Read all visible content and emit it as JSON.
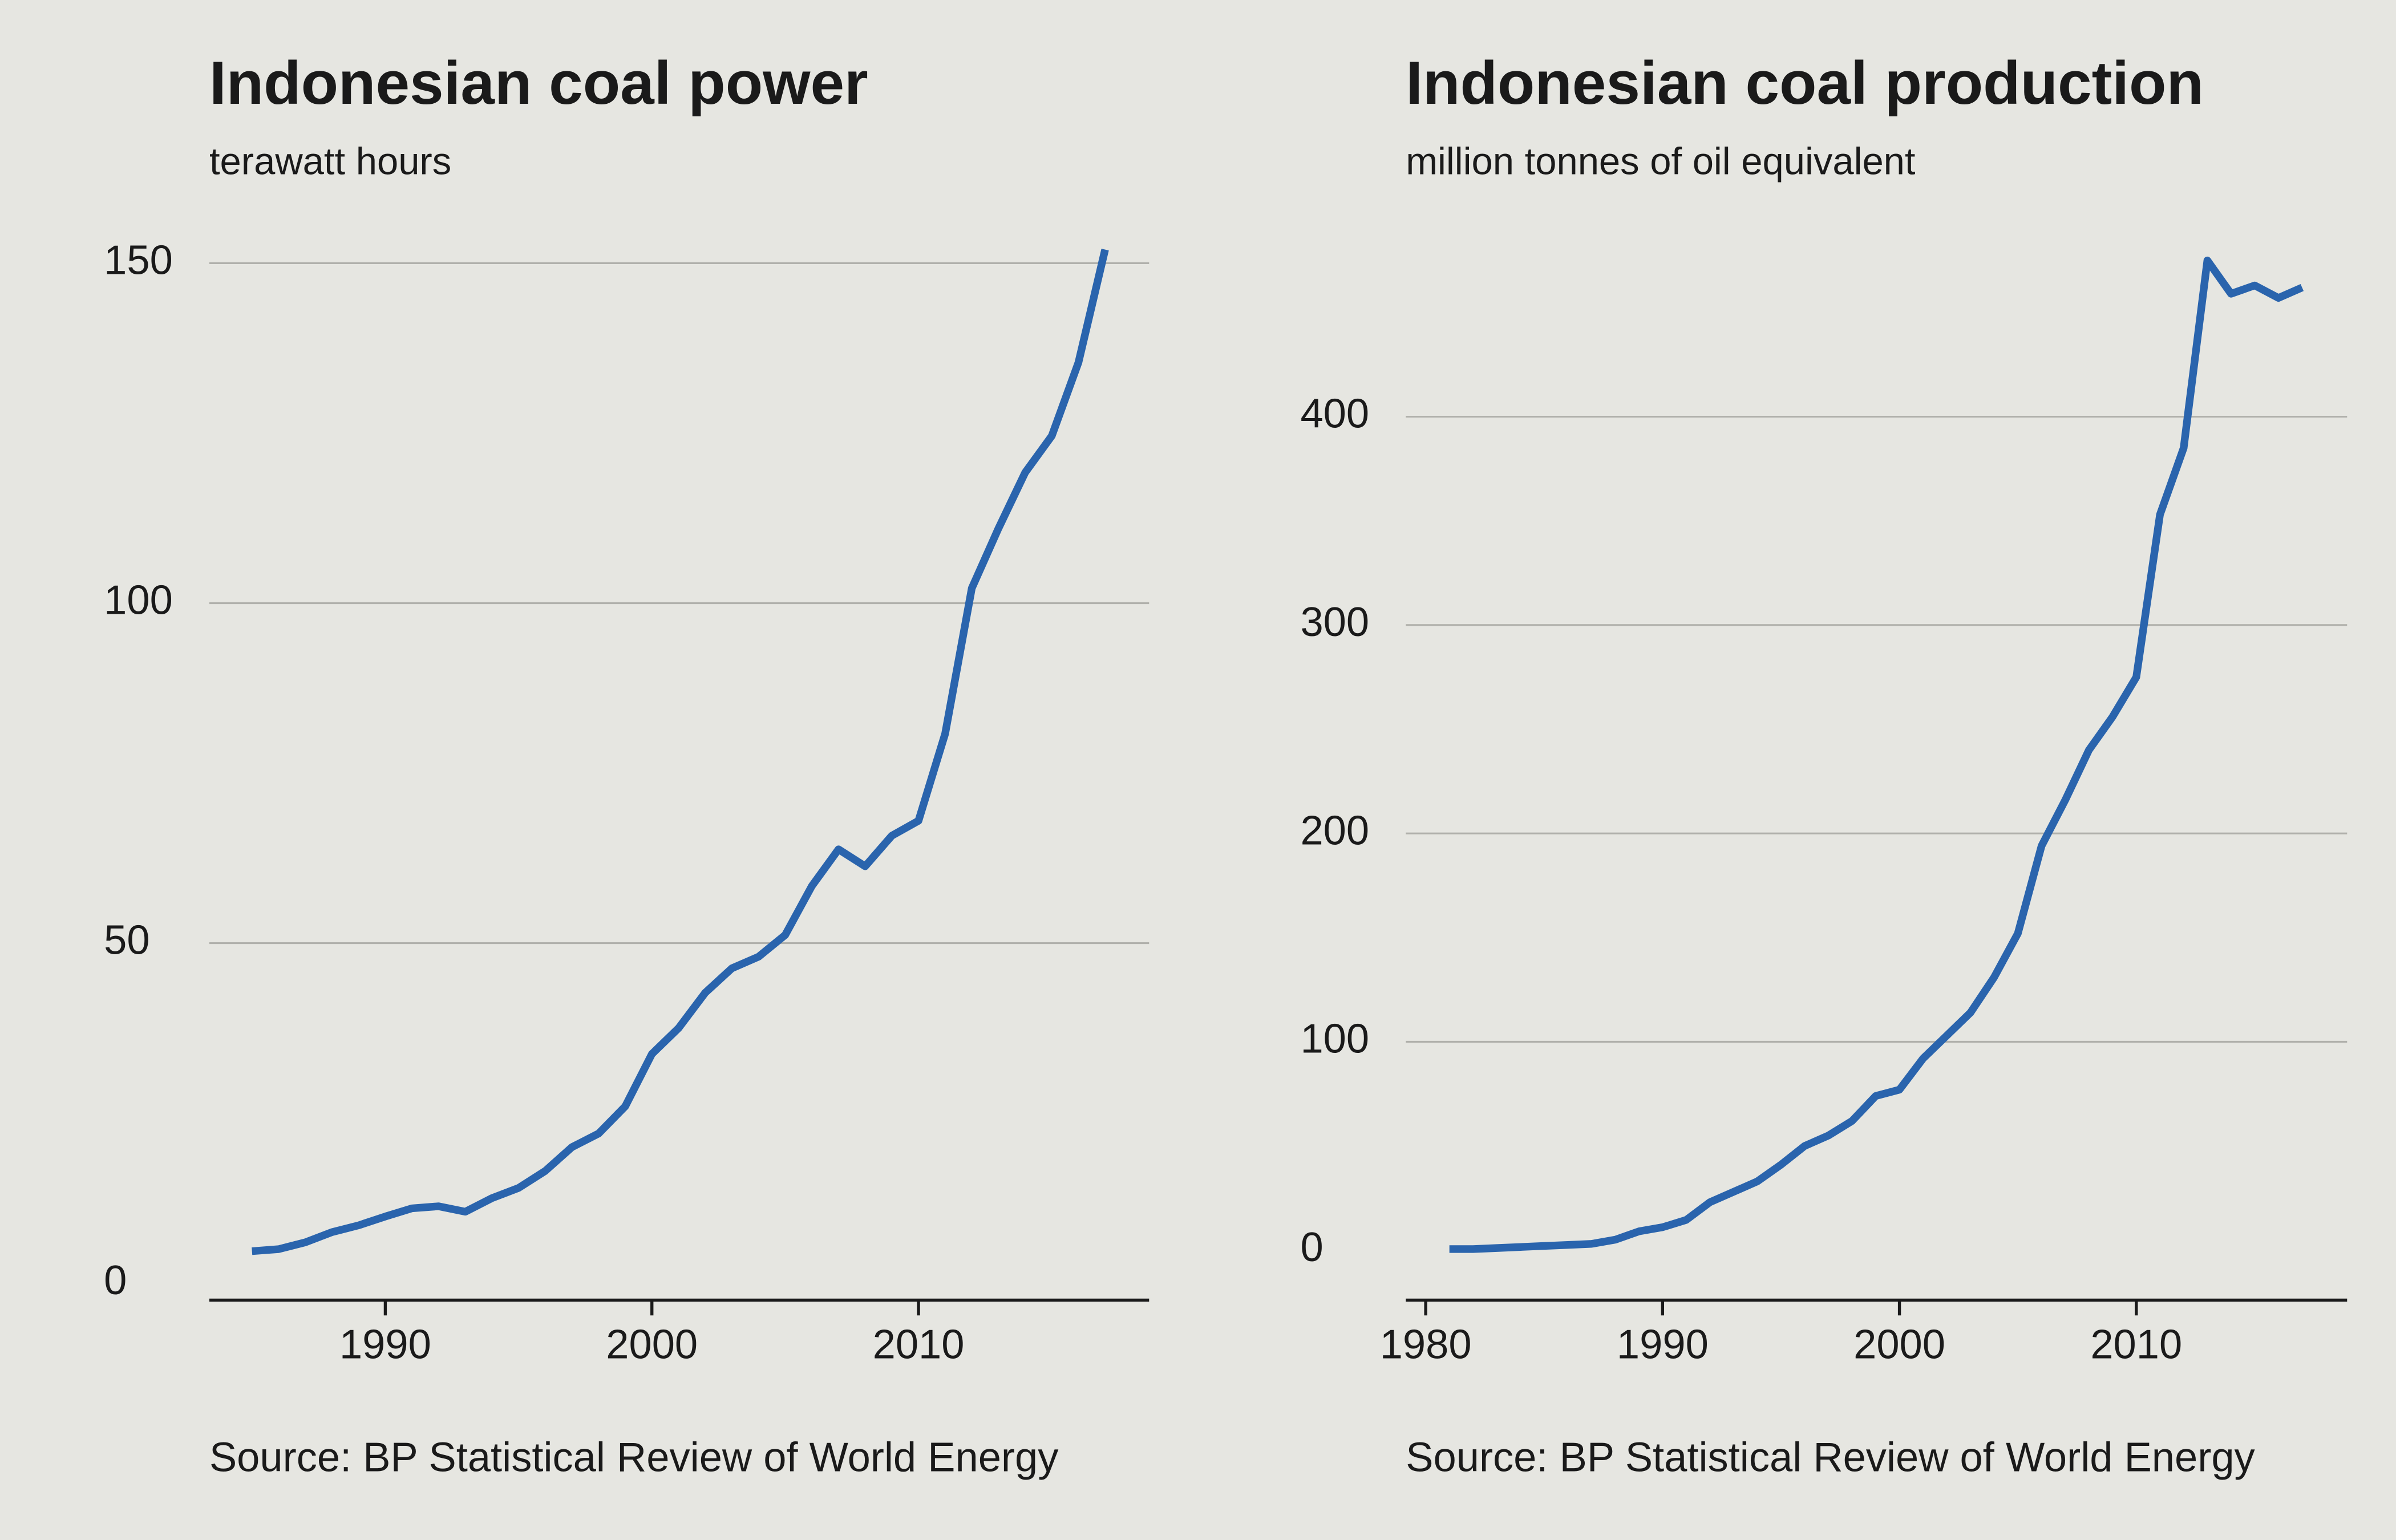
{
  "chart_data": [
    {
      "type": "line",
      "title": "Indonesian coal power",
      "subtitle": "terawatt hours",
      "source": "Source: BP Statistical Review of World Energy",
      "color": "#2a64ad",
      "grid": true,
      "x": [
        1985,
        1986,
        1987,
        1988,
        1989,
        1990,
        1991,
        1992,
        1993,
        1994,
        1995,
        1996,
        1997,
        1998,
        1999,
        2000,
        2001,
        2002,
        2003,
        2004,
        2005,
        2006,
        2007,
        2008,
        2009,
        2010,
        2011,
        2012,
        2013,
        2014,
        2015,
        2016,
        2017
      ],
      "values": [
        4.7,
        5,
        6,
        7.5,
        8.5,
        9.8,
        11,
        11.3,
        10.5,
        12.5,
        14,
        16.5,
        20,
        22,
        26,
        33.7,
        37.5,
        42.7,
        46.3,
        48,
        51.2,
        58.4,
        63.8,
        61.3,
        65.8,
        68,
        80.8,
        102.2,
        111,
        119.2,
        124.6,
        135.4,
        152
      ],
      "xlim": [
        1983.4,
        2018.65
      ],
      "xticks": [
        1990,
        2000,
        2010
      ],
      "ylim": [
        -2.5,
        155
      ],
      "yticks": [
        0,
        50,
        100,
        150
      ]
    },
    {
      "type": "line",
      "title": "Indonesian coal production",
      "subtitle": "million tonnes of oil equivalent",
      "source": "Source: BP Statistical Review of World Energy",
      "color": "#2a64ad",
      "grid": true,
      "x": [
        1981,
        1982,
        1983,
        1984,
        1985,
        1986,
        1987,
        1988,
        1989,
        1990,
        1991,
        1992,
        1993,
        1994,
        1995,
        1996,
        1997,
        1998,
        1999,
        2000,
        2001,
        2002,
        2003,
        2004,
        2005,
        2006,
        2007,
        2008,
        2009,
        2010,
        2011,
        2012,
        2013,
        2014,
        2015,
        2016,
        2017
      ],
      "values": [
        0.5,
        0.5,
        1,
        1.5,
        2,
        2.5,
        3,
        5,
        9,
        11,
        14.5,
        23,
        28,
        33,
        41,
        50,
        55,
        62,
        74,
        77,
        92,
        103,
        114,
        131,
        152,
        194,
        216,
        240,
        256,
        275,
        353,
        385,
        475,
        459,
        463,
        457,
        462
      ],
      "xlim": [
        1979.16,
        2018.9
      ],
      "xticks": [
        1980,
        1990,
        2000,
        2010
      ],
      "ylim": [
        -24,
        490
      ],
      "yticks": [
        0,
        100,
        200,
        300,
        400
      ]
    }
  ]
}
